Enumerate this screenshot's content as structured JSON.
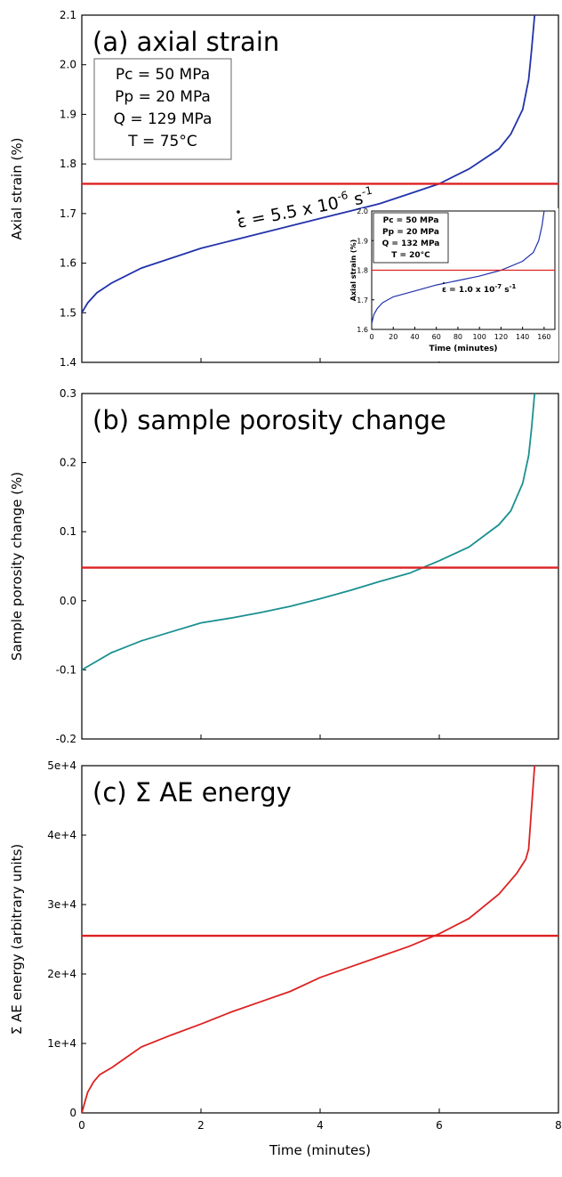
{
  "chart_data": [
    {
      "type": "line",
      "title": "(a) axial strain",
      "ylabel": "Axial strain (%)",
      "xlim": [
        0,
        8
      ],
      "ylim": [
        1.4,
        2.1
      ],
      "yticks": [
        "1.4",
        "1.5",
        "1.6",
        "1.7",
        "1.8",
        "1.9",
        "2.0",
        "2.1"
      ],
      "grid": false,
      "params": [
        "Pc = 50 MPa",
        "Pp = 20 MPa",
        "Q = 129 MPa",
        "T = 75°C"
      ],
      "annotation": {
        "base": "ε = 5.5 x 10",
        "exp": "-6",
        "unit": " s",
        "unit_exp": "-1"
      },
      "series": [
        {
          "color": "#2233aa",
          "x": [
            0,
            0.1,
            0.25,
            0.5,
            1,
            1.5,
            2,
            2.5,
            3,
            3.5,
            4,
            4.5,
            5,
            5.5,
            6,
            6.5,
            7,
            7.2,
            7.4,
            7.5,
            7.55,
            7.6
          ],
          "y": [
            1.5,
            1.52,
            1.54,
            1.56,
            1.59,
            1.61,
            1.63,
            1.645,
            1.66,
            1.675,
            1.69,
            1.705,
            1.72,
            1.74,
            1.76,
            1.79,
            1.83,
            1.86,
            1.91,
            1.97,
            2.03,
            2.1
          ]
        },
        {
          "color": "#dd2222",
          "x": [
            0,
            8
          ],
          "y": [
            1.76,
            1.76
          ]
        }
      ],
      "inset": {
        "xlabel": "Time (minutes)",
        "ylabel": "Axial strain (%)",
        "xticks": [
          "0",
          "20",
          "40",
          "60",
          "80",
          "100",
          "120",
          "140",
          "160"
        ],
        "yticks": [
          "1.6",
          "1.7",
          "1.8",
          "1.9",
          "2.0"
        ],
        "xlim": [
          0,
          170
        ],
        "ylim": [
          1.6,
          2.0
        ],
        "params": [
          "Pc = 50 MPa",
          "Pp = 20 MPa",
          "Q = 132 MPa",
          "T = 20°C"
        ],
        "annotation": {
          "base": "ε = 1.0 x 10",
          "exp": "-7",
          "unit": " s",
          "unit_exp": "-1"
        },
        "series": [
          {
            "color": "#2233aa",
            "x": [
              0,
              2,
              5,
              10,
              20,
              40,
              60,
              80,
              100,
              120,
              140,
              150,
              155,
              158,
              160
            ],
            "y": [
              1.62,
              1.65,
              1.67,
              1.69,
              1.71,
              1.73,
              1.75,
              1.765,
              1.78,
              1.8,
              1.83,
              1.86,
              1.9,
              1.95,
              2.0
            ]
          },
          {
            "color": "#dd2222",
            "x": [
              0,
              170
            ],
            "y": [
              1.8,
              1.8
            ]
          }
        ]
      }
    },
    {
      "type": "line",
      "title": "(b) sample porosity change",
      "ylabel": "Sample porosity change (%)",
      "xlim": [
        0,
        8
      ],
      "ylim": [
        -0.2,
        0.3
      ],
      "yticks": [
        "-0.2",
        "-0.1",
        "0.0",
        "0.1",
        "0.2",
        "0.3"
      ],
      "grid": false,
      "series": [
        {
          "color": "#1a9090",
          "x": [
            0,
            0.2,
            0.5,
            1,
            1.5,
            2,
            2.5,
            3,
            3.5,
            4,
            4.5,
            5,
            5.5,
            6,
            6.5,
            7,
            7.2,
            7.4,
            7.5,
            7.55,
            7.6
          ],
          "y": [
            -0.1,
            -0.09,
            -0.075,
            -0.058,
            -0.045,
            -0.032,
            -0.025,
            -0.017,
            -0.008,
            0.003,
            0.015,
            0.028,
            0.04,
            0.058,
            0.078,
            0.11,
            0.13,
            0.17,
            0.21,
            0.25,
            0.3
          ]
        },
        {
          "color": "#dd2222",
          "x": [
            0,
            8
          ],
          "y": [
            0.048,
            0.048
          ]
        }
      ]
    },
    {
      "type": "line",
      "title": "(c) Σ AE energy",
      "ylabel": "Σ AE energy (arbitrary units)",
      "xlabel": "Time (minutes)",
      "xlim": [
        0,
        8
      ],
      "ylim": [
        0,
        50000
      ],
      "xticks": [
        "0",
        "2",
        "4",
        "6",
        "8"
      ],
      "yticks": [
        "0",
        "1e+4",
        "2e+4",
        "3e+4",
        "4e+4",
        "5e+4"
      ],
      "grid": false,
      "series": [
        {
          "color": "#dd2222",
          "x": [
            0,
            0.05,
            0.1,
            0.2,
            0.3,
            0.5,
            0.7,
            1,
            1.5,
            2,
            2.5,
            3,
            3.5,
            4,
            4.5,
            5,
            5.5,
            6,
            6.5,
            7,
            7.3,
            7.45,
            7.5,
            7.55,
            7.6
          ],
          "y": [
            0,
            1500,
            3000,
            4500,
            5500,
            6500,
            7700,
            9500,
            11200,
            12800,
            14500,
            16000,
            17500,
            19500,
            21000,
            22500,
            24000,
            25800,
            28000,
            31500,
            34500,
            36500,
            38000,
            44000,
            50000
          ]
        },
        {
          "color": "#dd2222",
          "x": [
            0,
            8
          ],
          "y": [
            25500,
            25500
          ]
        }
      ]
    }
  ]
}
